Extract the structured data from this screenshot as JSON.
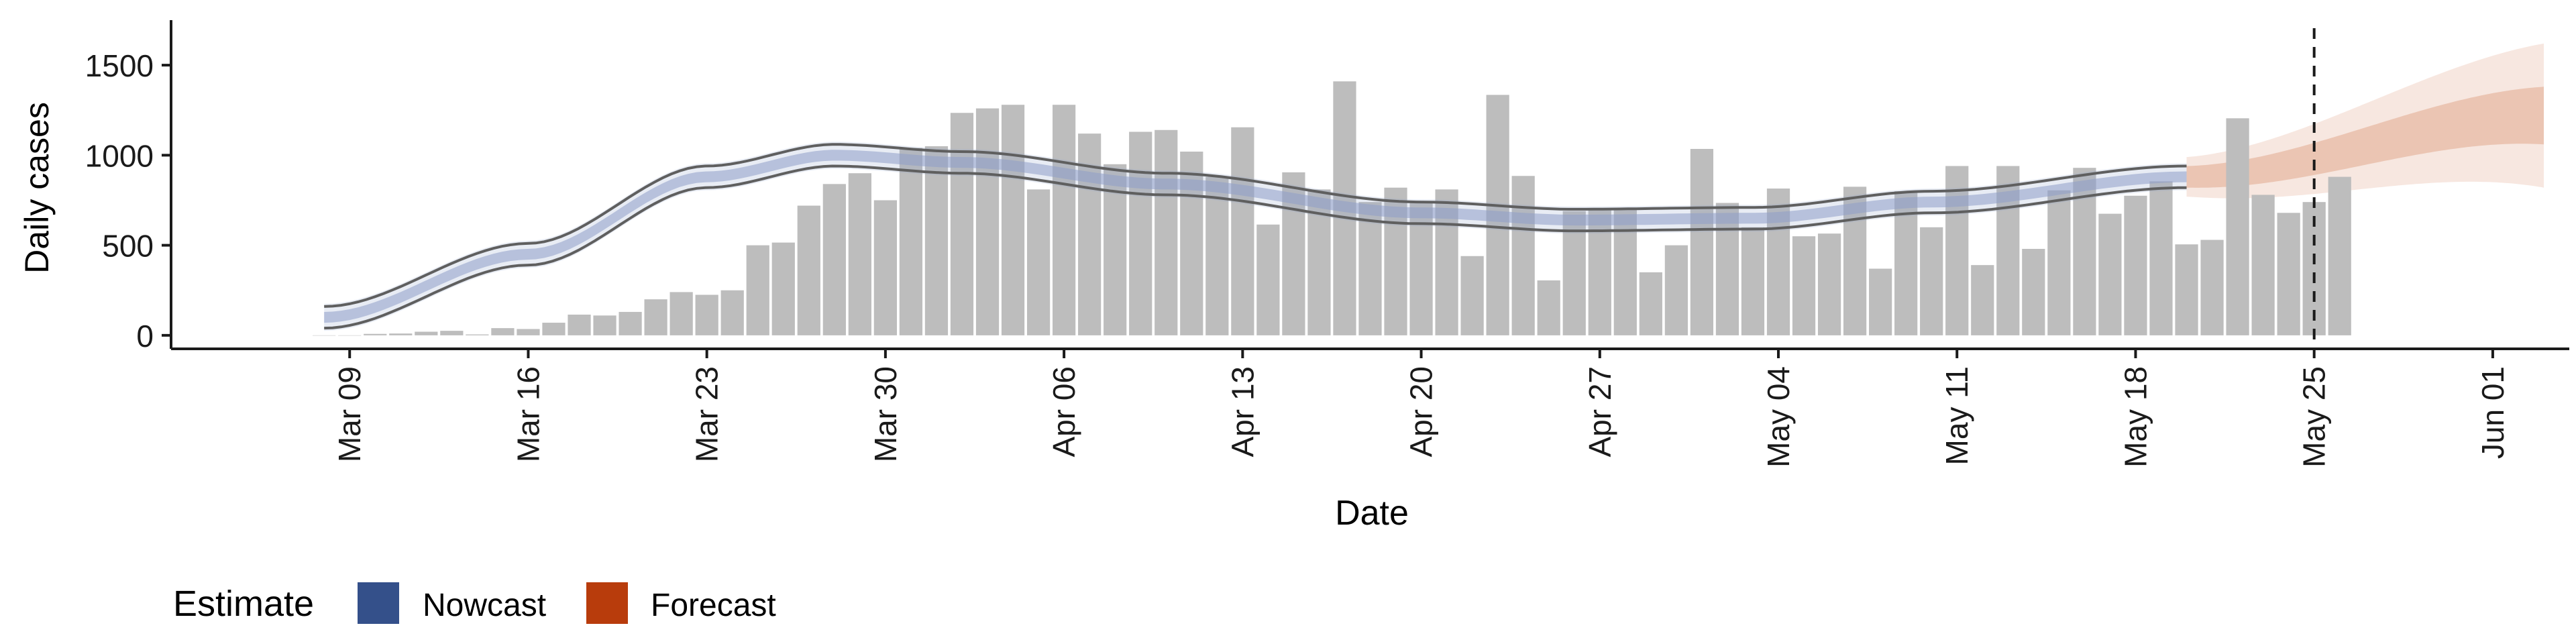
{
  "chart_data": {
    "type": "bar",
    "xlabel": "Date",
    "ylabel": "Daily cases",
    "x_range": [
      "2020-03-02",
      "2020-06-04"
    ],
    "ylim": [
      -75,
      1750
    ],
    "y_ticks": [
      0,
      500,
      1000,
      1500
    ],
    "x_ticks": [
      {
        "date": "2020-03-09",
        "label": "Mar 09"
      },
      {
        "date": "2020-03-16",
        "label": "Mar 16"
      },
      {
        "date": "2020-03-23",
        "label": "Mar 23"
      },
      {
        "date": "2020-03-30",
        "label": "Mar 30"
      },
      {
        "date": "2020-04-06",
        "label": "Apr 06"
      },
      {
        "date": "2020-04-13",
        "label": "Apr 13"
      },
      {
        "date": "2020-04-20",
        "label": "Apr 20"
      },
      {
        "date": "2020-04-27",
        "label": "Apr 27"
      },
      {
        "date": "2020-05-04",
        "label": "May 04"
      },
      {
        "date": "2020-05-11",
        "label": "May 11"
      },
      {
        "date": "2020-05-18",
        "label": "May 18"
      },
      {
        "date": "2020-05-25",
        "label": "May 25"
      },
      {
        "date": "2020-06-01",
        "label": "Jun 01"
      }
    ],
    "grid": false,
    "legend_position": "bottom-left",
    "legend_title": "Estimate",
    "legend": [
      {
        "label": "Nowcast",
        "color": "#34508a"
      },
      {
        "label": "Forecast",
        "color": "#b83c0c"
      }
    ],
    "colors": {
      "bars": "#bdbdbd",
      "nowcast": "#8e9fc9",
      "forecast": "#e2aa8e",
      "bounds": "#5f5f5f"
    },
    "observation_end": "2020-05-25",
    "bars": {
      "start_date": "2020-03-08",
      "values": [
        0,
        0,
        8,
        10,
        20,
        25,
        5,
        40,
        35,
        70,
        115,
        110,
        130,
        200,
        240,
        225,
        250,
        500,
        515,
        720,
        840,
        900,
        750,
        1040,
        1050,
        1235,
        1260,
        1280,
        810,
        1280,
        1120,
        950,
        1130,
        1140,
        1020,
        880,
        1155,
        615,
        905,
        810,
        1410,
        740,
        820,
        745,
        810,
        440,
        1335,
        885,
        305,
        690,
        700,
        705,
        350,
        500,
        1035,
        735,
        600,
        815,
        550,
        565,
        825,
        370,
        800,
        600,
        940,
        390,
        940,
        480,
        805,
        930,
        675,
        775,
        855,
        505,
        530,
        1205,
        780,
        680,
        740,
        880
      ]
    },
    "nowcast": {
      "start_date": "2020-03-08",
      "end_date": "2020-05-20",
      "knots": [
        [
          "2020-03-08",
          100
        ],
        [
          "2020-03-16",
          450
        ],
        [
          "2020-03-23",
          880
        ],
        [
          "2020-03-28",
          1000
        ],
        [
          "2020-04-02",
          960
        ],
        [
          "2020-04-10",
          840
        ],
        [
          "2020-04-20",
          680
        ],
        [
          "2020-04-26",
          640
        ],
        [
          "2020-05-03",
          650
        ],
        [
          "2020-05-10",
          740
        ],
        [
          "2020-05-20",
          880
        ]
      ],
      "inner_halfwidth": 30,
      "outer_halfwidth": 75,
      "bound_halfwidth": 60
    },
    "forecast": {
      "start_date": "2020-05-20",
      "end_date": "2020-06-03",
      "knots": [
        [
          "2020-05-20",
          880
        ],
        [
          "2020-06-03",
          1220
        ]
      ],
      "inner_halfwidth": [
        60,
        160
      ],
      "outer_halfwidth": [
        110,
        400
      ]
    }
  }
}
